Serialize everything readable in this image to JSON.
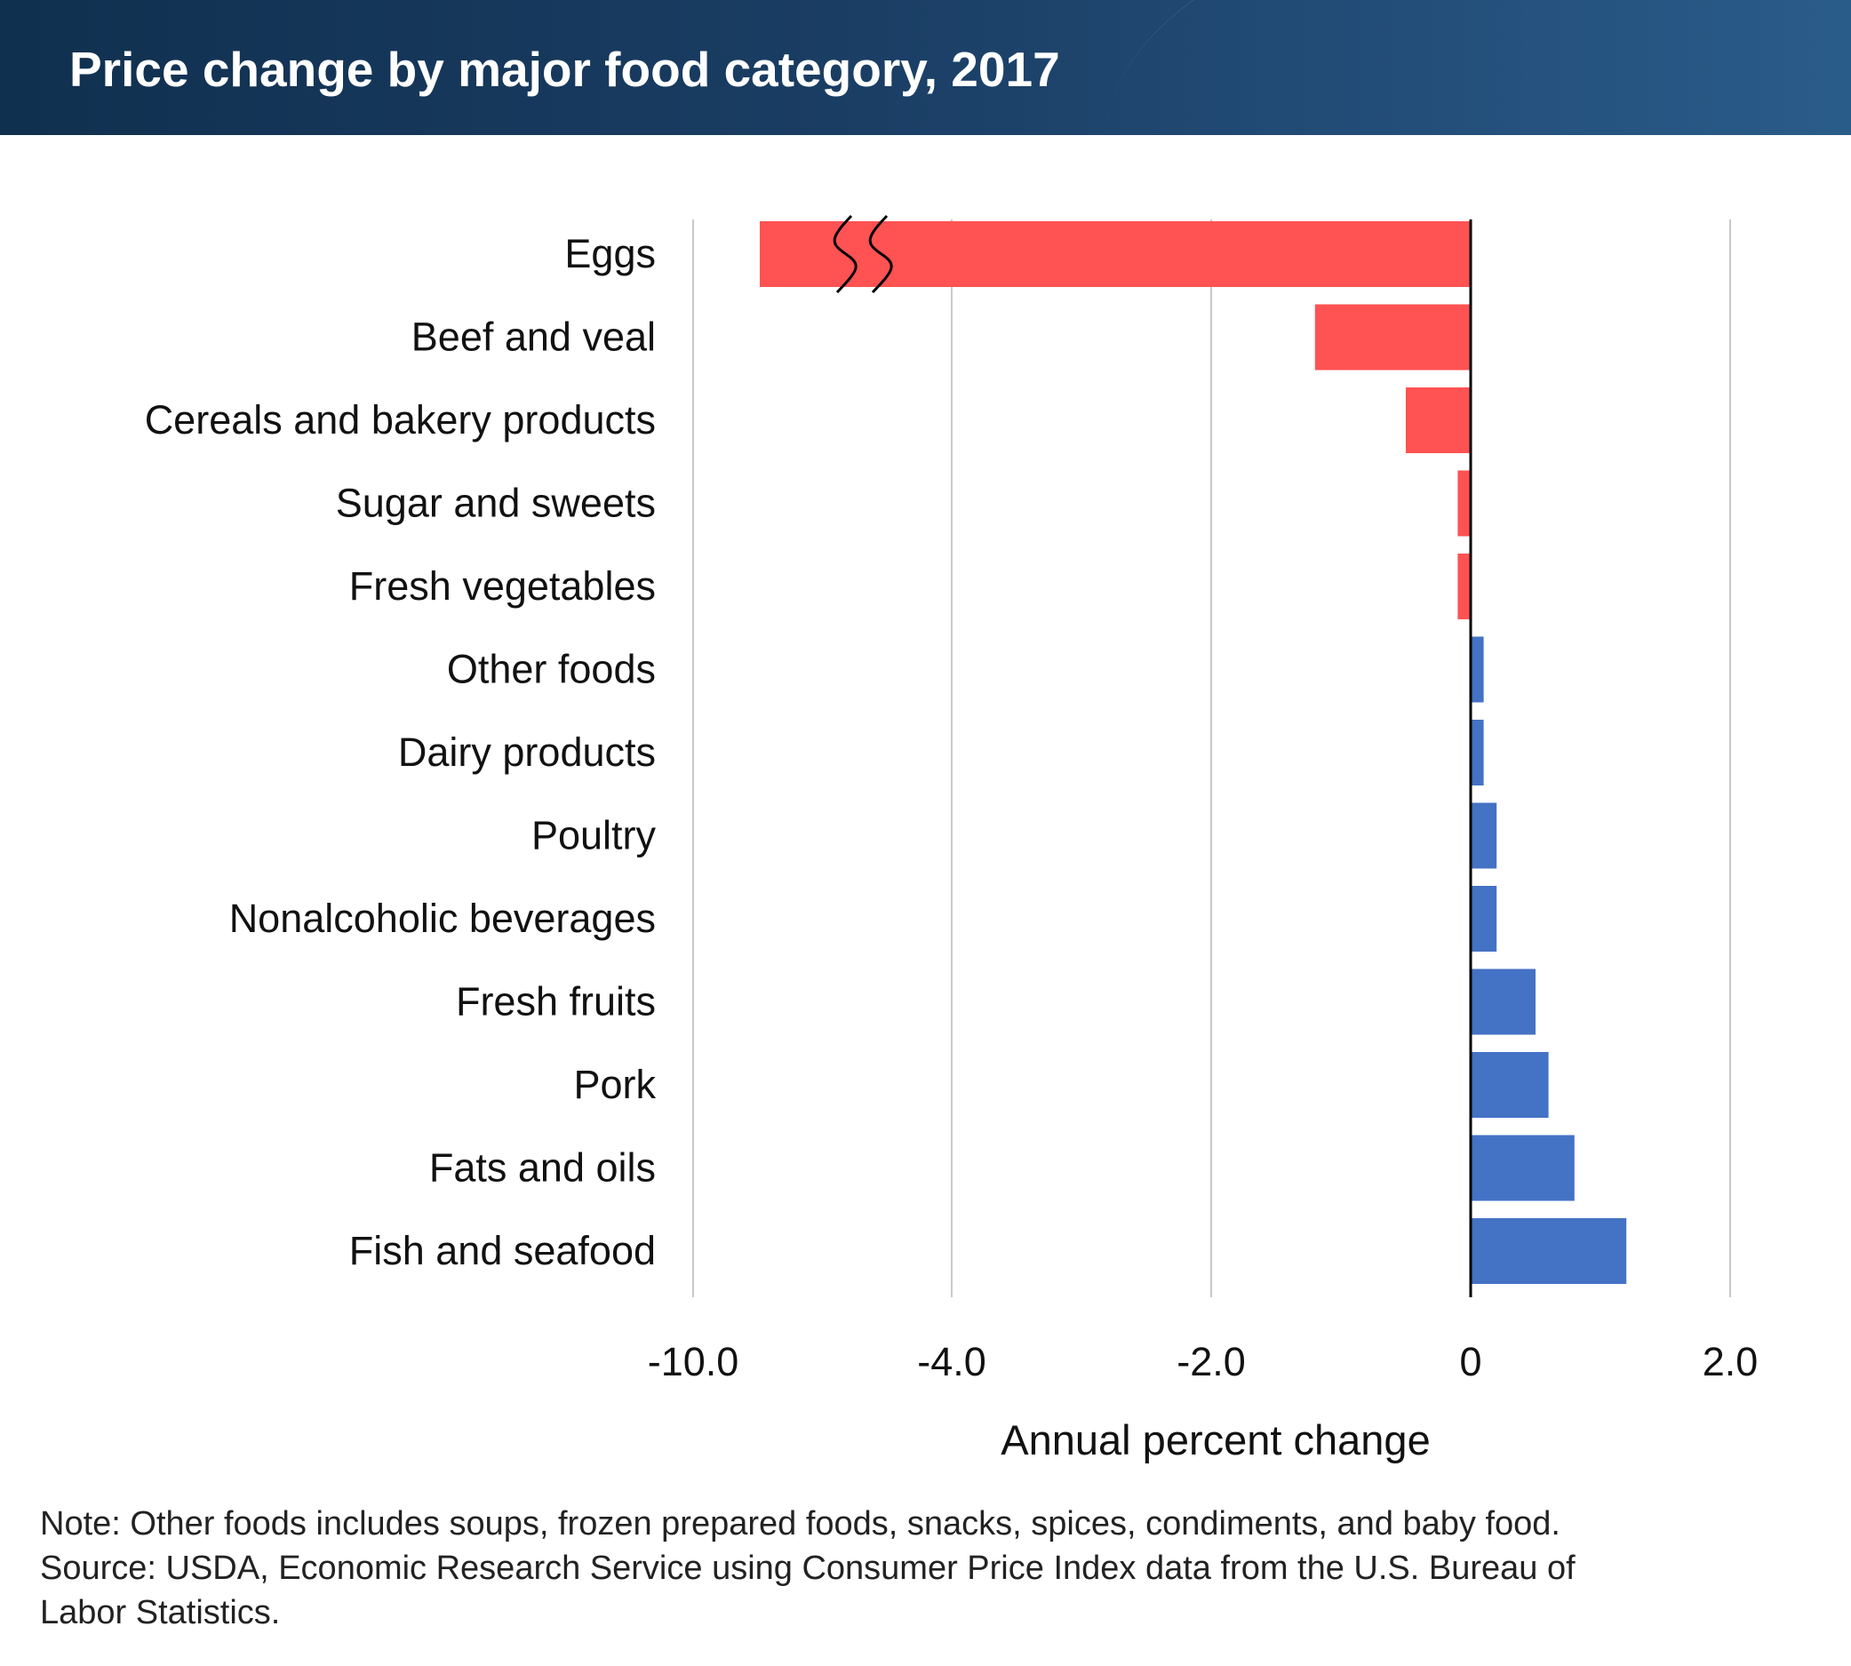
{
  "chart_data": {
    "type": "bar",
    "orientation": "horizontal",
    "title": "Price change by major food category, 2017",
    "xlabel": "Annual percent change",
    "ylabel": "",
    "categories": [
      "Eggs",
      "Beef and veal",
      "Cereals and bakery products",
      "Sugar and sweets",
      "Fresh vegetables",
      "Other foods",
      "Dairy products",
      "Poultry",
      "Nonalcoholic beverages",
      "Fresh fruits",
      "Pork",
      "Fats and oils",
      "Fish and seafood"
    ],
    "values": [
      -10.3,
      -1.2,
      -0.5,
      -0.1,
      -0.1,
      0.1,
      0.1,
      0.2,
      0.2,
      0.5,
      0.6,
      0.8,
      1.2
    ],
    "x_ticks": [
      "-10.0",
      "-4.0",
      "-2.0",
      "0",
      "2.0"
    ],
    "xlim": [
      -6.0,
      2.0
    ],
    "axis_break": "between -10.0 and -4.0",
    "grid": true,
    "colors": {
      "negative": "#ff5252",
      "positive": "#4472c4",
      "gridline": "#c8c8c8",
      "zero_line": "#000000"
    }
  },
  "notes": [
    "Note: Other foods includes soups, frozen prepared foods, snacks, spices, condiments, and baby food.",
    "Source: USDA, Economic Research Service using Consumer Price Index data from the U.S. Bureau of",
    "Labor Statistics."
  ],
  "header_colors": {
    "banner": "#1a3d63",
    "title_text": "#ffffff"
  }
}
